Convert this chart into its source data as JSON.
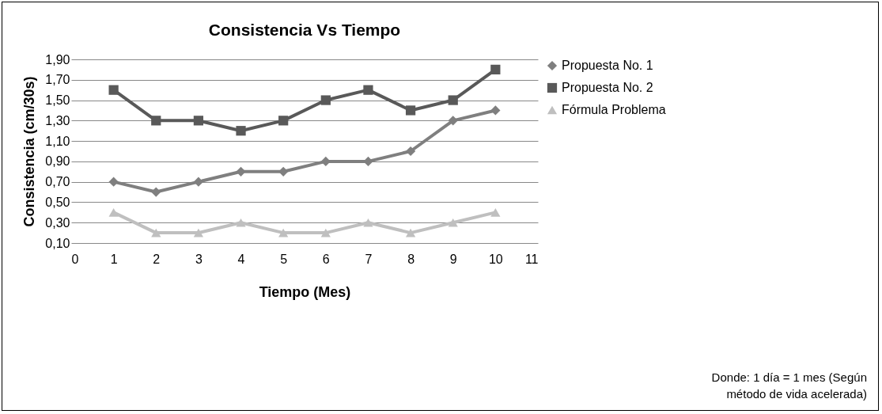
{
  "chart_data": {
    "type": "line",
    "title": "Consistencia Vs Tiempo",
    "xlabel": "Tiempo (Mes)",
    "ylabel": "Consistencia (cm/30s)",
    "x": [
      1,
      2,
      3,
      4,
      5,
      6,
      7,
      8,
      9,
      10
    ],
    "series": [
      {
        "name": "Propuesta No. 1",
        "color": "#7f7f7f",
        "marker": "diamond",
        "values": [
          0.7,
          0.6,
          0.7,
          0.8,
          0.8,
          0.9,
          0.9,
          1.0,
          1.3,
          1.4
        ]
      },
      {
        "name": "Propuesta No. 2",
        "color": "#595959",
        "marker": "square",
        "values": [
          1.6,
          1.3,
          1.3,
          1.2,
          1.3,
          1.5,
          1.6,
          1.4,
          1.5,
          1.8
        ]
      },
      {
        "name": "Fórmula Problema",
        "color": "#bfbfbf",
        "marker": "triangle",
        "values": [
          0.4,
          0.2,
          0.2,
          0.3,
          0.2,
          0.2,
          0.3,
          0.2,
          0.3,
          0.4
        ]
      }
    ],
    "xlim": [
      0,
      11
    ],
    "xticks": [
      0,
      1,
      2,
      3,
      4,
      5,
      6,
      7,
      8,
      9,
      10,
      11
    ],
    "ylim": [
      0.1,
      1.9
    ],
    "yticks": [
      {
        "value": 0.1,
        "label": "0,10"
      },
      {
        "value": 0.3,
        "label": "0,30"
      },
      {
        "value": 0.5,
        "label": "0,50"
      },
      {
        "value": 0.7,
        "label": "0,70"
      },
      {
        "value": 0.9,
        "label": "0,90"
      },
      {
        "value": 1.1,
        "label": "1,10"
      },
      {
        "value": 1.3,
        "label": "1,30"
      },
      {
        "value": 1.5,
        "label": "1,50"
      },
      {
        "value": 1.7,
        "label": "1,70"
      },
      {
        "value": 1.9,
        "label": "1,90"
      }
    ],
    "grid": "y",
    "legend": "right",
    "line_style": "solid",
    "annotations": [
      "Donde: 1 día = 1 mes (Según\nmétodo de vida acelerada)"
    ]
  }
}
